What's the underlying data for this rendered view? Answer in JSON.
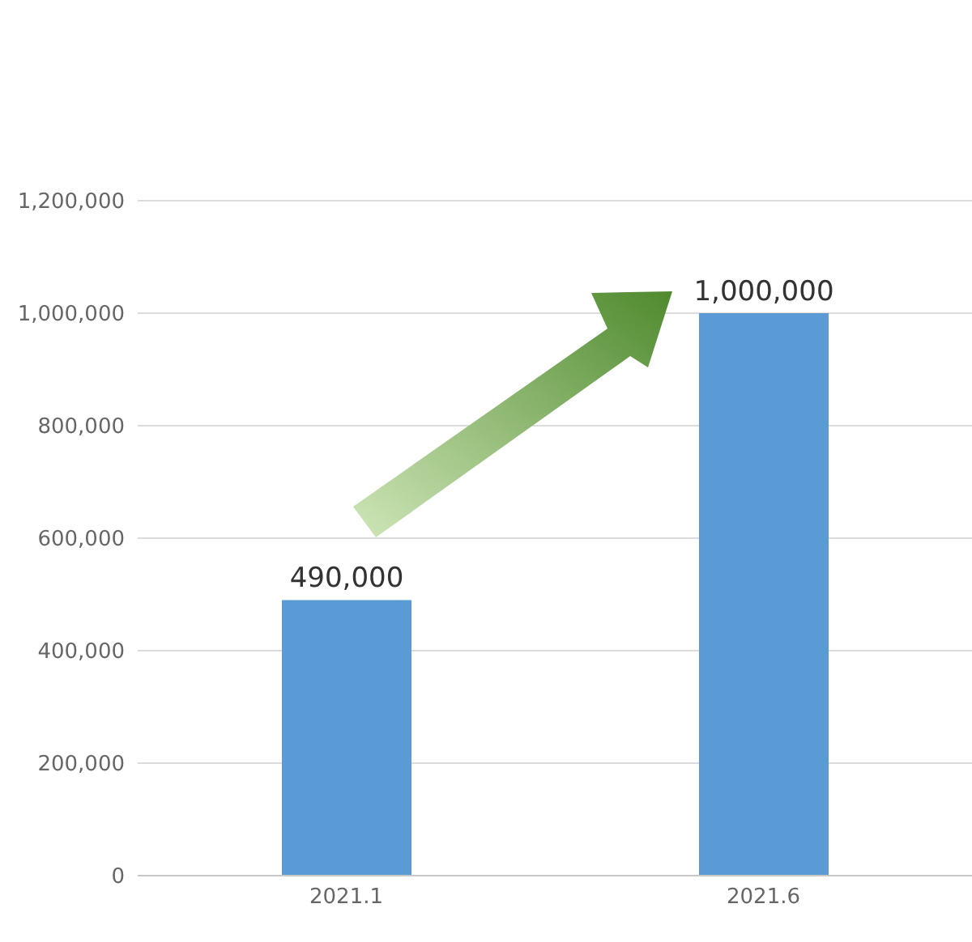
{
  "chart_data": {
    "type": "bar",
    "categories": [
      "2021.1",
      "2021.6"
    ],
    "values": [
      490000,
      1000000
    ],
    "color": "#5b9bd5",
    "ylim": [
      0,
      1200000
    ],
    "yticks": [
      {
        "value": 0,
        "label": "0"
      },
      {
        "value": 200000,
        "label": "200,000"
      },
      {
        "value": 400000,
        "label": "400,000"
      },
      {
        "value": 600000,
        "label": "600,000"
      },
      {
        "value": 800000,
        "label": "800,000"
      },
      {
        "value": 1000000,
        "label": "1,000,000"
      },
      {
        "value": 1200000,
        "label": "1,200,000"
      }
    ],
    "grid": "y",
    "value_labels": [
      "490,000",
      "1,000,000"
    ]
  }
}
